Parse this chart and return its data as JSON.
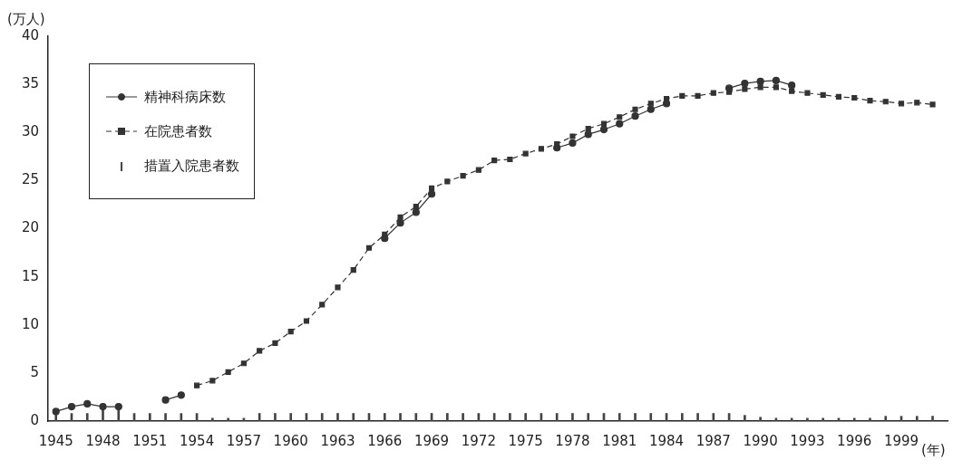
{
  "chart_data": {
    "type": "line",
    "ylabel": "(万人)",
    "xlabel": "(年)",
    "x": [
      1945,
      1946,
      1947,
      1948,
      1949,
      1950,
      1951,
      1952,
      1953,
      1954,
      1955,
      1956,
      1957,
      1958,
      1959,
      1960,
      1961,
      1962,
      1963,
      1964,
      1965,
      1966,
      1967,
      1968,
      1969,
      1970,
      1971,
      1972,
      1973,
      1974,
      1975,
      1976,
      1977,
      1978,
      1979,
      1980,
      1981,
      1982,
      1983,
      1984,
      1985,
      1986,
      1987,
      1988,
      1989,
      1990,
      1991,
      1992,
      1993,
      1994,
      1995,
      1996,
      1997,
      1998,
      1999,
      2000,
      2001
    ],
    "series": [
      {
        "name": "精神科病床数",
        "color": "#333333",
        "marker": "circle",
        "line_style": "solid",
        "values": [
          1.0,
          1.5,
          1.8,
          1.5,
          1.5,
          null,
          null,
          2.2,
          2.7,
          null,
          null,
          null,
          null,
          null,
          null,
          null,
          null,
          null,
          null,
          null,
          null,
          19.0,
          20.6,
          21.7,
          23.6,
          null,
          null,
          null,
          null,
          null,
          null,
          null,
          28.4,
          28.9,
          29.8,
          30.3,
          30.9,
          31.7,
          32.4,
          33.0,
          null,
          null,
          null,
          34.6,
          35.1,
          35.3,
          35.4,
          34.9,
          null,
          null,
          null,
          null,
          null,
          null,
          null,
          null,
          null
        ]
      },
      {
        "name": "在院患者数",
        "color": "#333333",
        "marker": "square",
        "line_style": "dashed",
        "values": [
          null,
          null,
          null,
          null,
          null,
          null,
          null,
          null,
          null,
          3.7,
          4.2,
          5.1,
          6.0,
          7.3,
          8.1,
          9.3,
          10.4,
          12.1,
          13.9,
          15.7,
          18.0,
          19.4,
          21.2,
          22.3,
          24.2,
          24.9,
          25.5,
          26.1,
          27.1,
          27.2,
          27.8,
          28.3,
          28.8,
          29.6,
          30.4,
          30.9,
          31.6,
          32.4,
          33.0,
          33.5,
          33.8,
          33.8,
          34.1,
          34.2,
          34.5,
          34.7,
          34.7,
          34.3,
          34.1,
          33.9,
          33.7,
          33.6,
          33.3,
          33.2,
          33.0,
          33.1,
          32.9
        ]
      },
      {
        "name": "措置入院患者数",
        "type": "bar",
        "color": "#444444",
        "values": [
          0.8,
          0.8,
          0.8,
          1.5,
          1.5,
          0.8,
          0.8,
          0.8,
          0.8,
          0.8,
          0.3,
          0.3,
          0.3,
          0.8,
          0.8,
          0.8,
          0.8,
          0.8,
          0.8,
          0.8,
          0.8,
          0.8,
          0.8,
          0.8,
          0.8,
          0.8,
          0.8,
          0.8,
          0.8,
          0.8,
          0.8,
          0.8,
          0.8,
          0.8,
          0.8,
          0.8,
          0.8,
          0.8,
          0.8,
          0.8,
          0.8,
          0.8,
          0.8,
          0.8,
          0.6,
          0.4,
          0.3,
          0.3,
          0.3,
          0.3,
          0.3,
          0.3,
          0.3,
          0.5,
          0.5,
          0.5,
          0.5
        ]
      }
    ],
    "xlim": [
      1944.5,
      2002
    ],
    "xticks": [
      1945,
      1948,
      1951,
      1954,
      1957,
      1960,
      1963,
      1966,
      1969,
      1972,
      1975,
      1978,
      1981,
      1984,
      1987,
      1990,
      1993,
      1996,
      1999
    ],
    "ylim": [
      0,
      40
    ],
    "yticks": [
      0,
      5,
      10,
      15,
      20,
      25,
      30,
      35,
      40
    ],
    "grid": false,
    "legend": "top left"
  }
}
